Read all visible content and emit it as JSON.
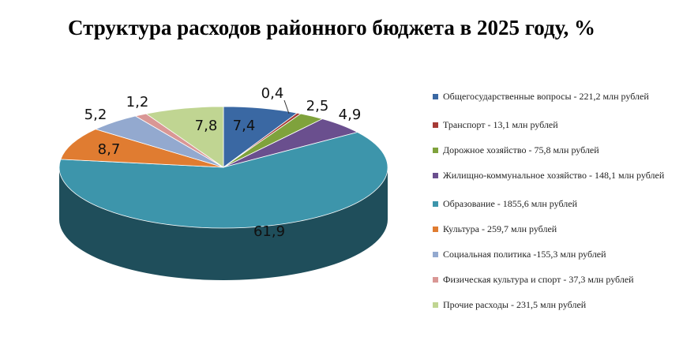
{
  "chart_data": {
    "type": "pie",
    "title": "Структура расходов районного бюджета в 2025 году, %",
    "slices": [
      {
        "label": "Общегосударственные вопросы - 221,2 млн рублей",
        "value": 7.4,
        "value_label": "7,4",
        "color": "#3a68a3",
        "side": "#284a75"
      },
      {
        "label": "Транспорт - 13,1 млн рублей",
        "value": 0.4,
        "value_label": "0,4",
        "color": "#a63a36",
        "side": "#762826"
      },
      {
        "label": "Дорожное хозяйство - 75,8 млн рублей",
        "value": 2.5,
        "value_label": "2,5",
        "color": "#7fa23c",
        "side": "#5b742a"
      },
      {
        "label": "Жилищно-коммунальное хозяйство - 148,1 млн рублей",
        "value": 4.9,
        "value_label": "4,9",
        "color": "#6a4f8e",
        "side": "#4b3865"
      },
      {
        "label": "Образование - 1855,6 млн рублей",
        "value": 61.9,
        "value_label": "61,9",
        "color": "#3d95ab",
        "side": "#1f4e5b"
      },
      {
        "label": "Культура - 259,7 млн рублей",
        "value": 8.7,
        "value_label": "8,7",
        "color": "#e07c31",
        "side": "#a35a22"
      },
      {
        "label": "Социальная политика -155,3 млн рублей",
        "value": 5.2,
        "value_label": "5,2",
        "color": "#93a9cf",
        "side": "#687a97"
      },
      {
        "label": "Физическая культура и спорт - 37,3 млн рублей",
        "value": 1.2,
        "value_label": "1,2",
        "color": "#d99795",
        "side": "#9c6c6b"
      },
      {
        "label": "Прочие расходы -  231,5 млн рублей",
        "value": 7.8,
        "value_label": "7,8",
        "color": "#c0d592",
        "side": "#8a9a69"
      }
    ],
    "legend_position": "right"
  }
}
